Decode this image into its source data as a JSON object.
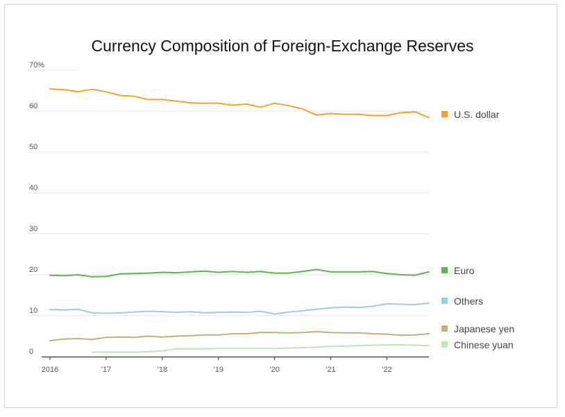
{
  "chart_data": {
    "type": "line",
    "title": "Currency Composition of Foreign-Exchange Reserves",
    "xlabel": "",
    "ylabel": "",
    "ylim": [
      0,
      70
    ],
    "yticks": [
      {
        "value": 70,
        "label": "70%"
      },
      {
        "value": 60,
        "label": "60"
      },
      {
        "value": 50,
        "label": "50"
      },
      {
        "value": 40,
        "label": "40"
      },
      {
        "value": 30,
        "label": "30"
      },
      {
        "value": 20,
        "label": "20"
      },
      {
        "value": 10,
        "label": "10"
      },
      {
        "value": 0,
        "label": "0"
      }
    ],
    "xticks": [
      {
        "value": 2016,
        "label": "2016"
      },
      {
        "value": 2017,
        "label": "’17"
      },
      {
        "value": 2018,
        "label": "’18"
      },
      {
        "value": 2019,
        "label": "’19"
      },
      {
        "value": 2020,
        "label": "’20"
      },
      {
        "value": 2021,
        "label": "’21"
      },
      {
        "value": 2022,
        "label": "’22"
      }
    ],
    "x": [
      2016.0,
      2016.25,
      2016.5,
      2016.75,
      2017.0,
      2017.25,
      2017.5,
      2017.75,
      2018.0,
      2018.25,
      2018.5,
      2018.75,
      2019.0,
      2019.25,
      2019.5,
      2019.75,
      2020.0,
      2020.25,
      2020.5,
      2020.75,
      2021.0,
      2021.25,
      2021.5,
      2021.75,
      2022.0,
      2022.25,
      2022.5,
      2022.75
    ],
    "grid": true,
    "legend": "right",
    "series": [
      {
        "name": "U.S. dollar",
        "color": "#f3a12f",
        "values": [
          65.4,
          65.2,
          64.7,
          65.3,
          64.7,
          63.8,
          63.6,
          62.8,
          62.8,
          62.4,
          62.0,
          61.9,
          61.9,
          61.4,
          61.7,
          60.9,
          61.9,
          61.3,
          60.5,
          59.0,
          59.4,
          59.2,
          59.2,
          58.9,
          58.9,
          59.6,
          59.8,
          58.4
        ],
        "legend_value": 58.4
      },
      {
        "name": "Euro",
        "color": "#55b849",
        "values": [
          19.9,
          19.8,
          20.0,
          19.5,
          19.6,
          20.2,
          20.3,
          20.4,
          20.6,
          20.5,
          20.7,
          20.9,
          20.6,
          20.8,
          20.6,
          20.8,
          20.4,
          20.4,
          20.8,
          21.3,
          20.7,
          20.7,
          20.7,
          20.8,
          20.3,
          20.0,
          19.9,
          20.7
        ],
        "legend_value": 20.7
      },
      {
        "name": "Others",
        "color": "#98cde8",
        "values": [
          11.5,
          11.4,
          11.6,
          10.7,
          10.6,
          10.7,
          10.9,
          11.1,
          11.0,
          10.8,
          11.0,
          10.7,
          10.8,
          10.9,
          10.8,
          11.1,
          10.4,
          10.9,
          11.2,
          11.6,
          11.9,
          12.1,
          12.0,
          12.3,
          12.9,
          12.8,
          12.7,
          13.1
        ],
        "legend_value": 13.1
      },
      {
        "name": "Japanese yen",
        "color": "#bdb27a",
        "values": [
          3.9,
          4.3,
          4.4,
          4.2,
          4.7,
          4.8,
          4.7,
          5.0,
          4.8,
          5.0,
          5.1,
          5.3,
          5.3,
          5.6,
          5.6,
          5.9,
          5.9,
          5.8,
          5.9,
          6.1,
          5.9,
          5.8,
          5.8,
          5.6,
          5.5,
          5.2,
          5.3,
          5.6
        ],
        "legend_value": 5.6
      },
      {
        "name": "Chinese yuan",
        "color": "#c3e3b8",
        "values": [
          null,
          null,
          null,
          1.1,
          1.1,
          1.1,
          1.1,
          1.2,
          1.4,
          1.9,
          1.9,
          1.9,
          2.0,
          2.0,
          2.0,
          2.0,
          2.0,
          2.1,
          2.2,
          2.3,
          2.5,
          2.6,
          2.7,
          2.8,
          2.9,
          2.9,
          2.8,
          2.7
        ],
        "legend_value": 2.7
      }
    ]
  }
}
